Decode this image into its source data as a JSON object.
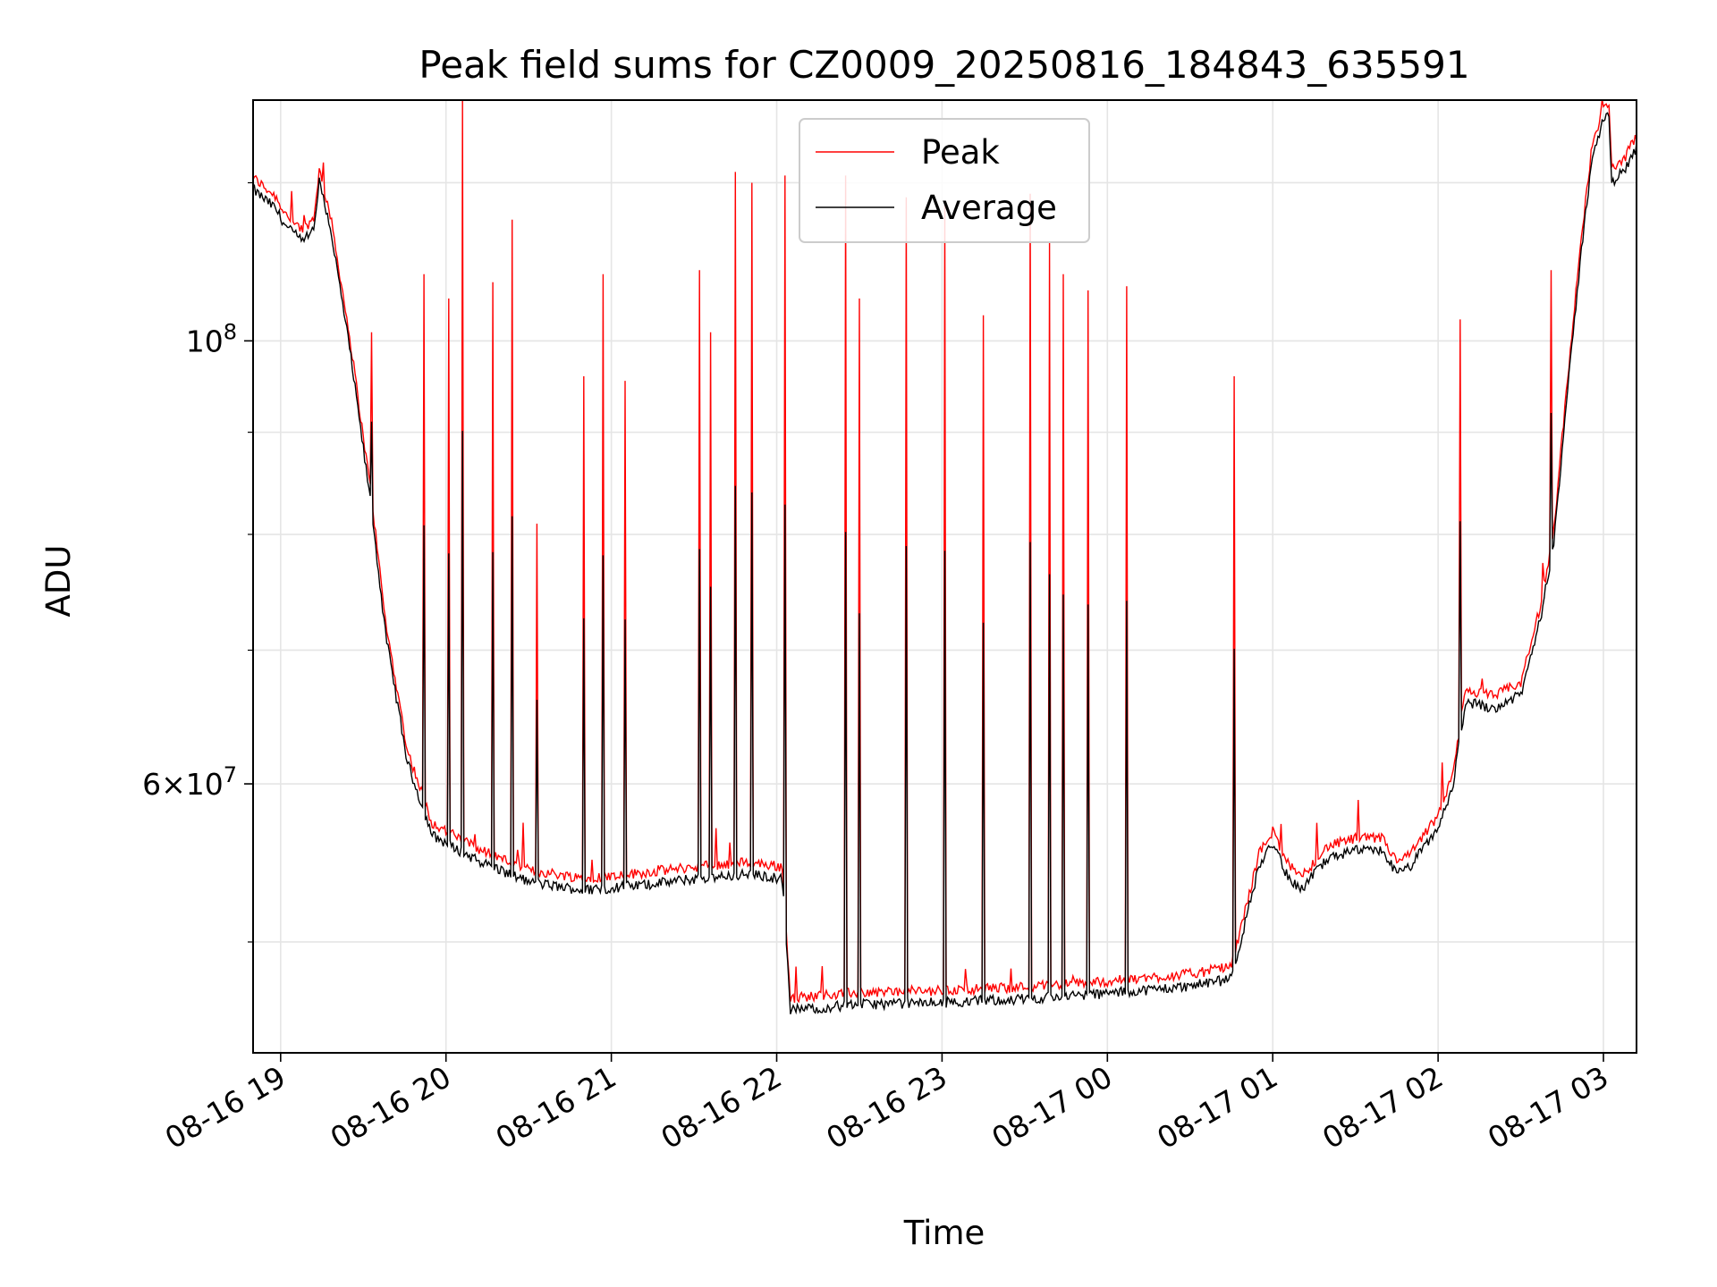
{
  "chart_data": {
    "type": "line",
    "title": "Peak field sums for CZ0009_20250816_184843_635591",
    "xlabel": "Time",
    "ylabel": "ADU",
    "y_scale": "log",
    "ylim": [
      44000000,
      132000000
    ],
    "xlim": [
      "2025-08-16 18:50",
      "2025-08-17 03:12"
    ],
    "x_ticks": [
      "08-16 19",
      "08-16 20",
      "08-16 21",
      "08-16 22",
      "08-16 23",
      "08-17 00",
      "08-17 01",
      "08-17 02",
      "08-17 03"
    ],
    "y_ticks": [
      "10^8",
      "6×10^7"
    ],
    "grid": true,
    "legend_position": "upper center",
    "series": [
      {
        "name": "Peak",
        "color": "#ff0000",
        "baseline": [
          [
            "2025-08-16 18:50",
            120000000
          ],
          [
            "2025-08-16 18:58",
            117500000
          ],
          [
            "2025-08-16 19:02",
            115000000
          ],
          [
            "2025-08-16 19:08",
            113000000
          ],
          [
            "2025-08-16 19:12",
            114500000
          ],
          [
            "2025-08-16 19:14",
            121000000
          ],
          [
            "2025-08-16 19:18",
            115000000
          ],
          [
            "2025-08-16 19:25",
            100000000
          ],
          [
            "2025-08-16 19:33",
            83000000
          ],
          [
            "2025-08-16 19:38",
            72000000
          ],
          [
            "2025-08-16 19:46",
            62000000
          ],
          [
            "2025-08-16 19:55",
            57000000
          ],
          [
            "2025-08-16 20:10",
            55500000
          ],
          [
            "2025-08-16 20:30",
            54000000
          ],
          [
            "2025-08-16 20:50",
            53500000
          ],
          [
            "2025-08-16 21:10",
            53800000
          ],
          [
            "2025-08-16 21:30",
            54200000
          ],
          [
            "2025-08-16 21:50",
            54500000
          ],
          [
            "2025-08-16 22:02",
            54200000
          ],
          [
            "2025-08-16 22:05",
            46600000
          ],
          [
            "2025-08-16 22:30",
            46900000
          ],
          [
            "2025-08-16 23:00",
            47000000
          ],
          [
            "2025-08-16 23:30",
            47200000
          ],
          [
            "2025-08-17 00:00",
            47500000
          ],
          [
            "2025-08-17 00:30",
            47900000
          ],
          [
            "2025-08-17 00:45",
            48300000
          ],
          [
            "2025-08-17 00:55",
            55000000
          ],
          [
            "2025-08-17 01:00",
            56500000
          ],
          [
            "2025-08-17 01:05",
            54500000
          ],
          [
            "2025-08-17 01:10",
            53500000
          ],
          [
            "2025-08-17 01:20",
            55500000
          ],
          [
            "2025-08-17 01:30",
            56000000
          ],
          [
            "2025-08-17 01:40",
            56000000
          ],
          [
            "2025-08-17 01:45",
            54500000
          ],
          [
            "2025-08-17 01:50",
            55000000
          ],
          [
            "2025-08-17 02:00",
            57500000
          ],
          [
            "2025-08-17 02:05",
            60000000
          ],
          [
            "2025-08-17 02:10",
            66500000
          ],
          [
            "2025-08-17 02:20",
            66000000
          ],
          [
            "2025-08-17 02:30",
            67000000
          ],
          [
            "2025-08-17 02:37",
            73000000
          ],
          [
            "2025-08-17 02:42",
            80000000
          ],
          [
            "2025-08-17 02:46",
            92000000
          ],
          [
            "2025-08-17 02:52",
            112000000
          ],
          [
            "2025-08-17 02:56",
            125000000
          ],
          [
            "2025-08-17 03:00",
            130000000
          ],
          [
            "2025-08-17 03:02",
            130500000
          ],
          [
            "2025-08-17 03:03",
            121000000
          ],
          [
            "2025-08-17 03:08",
            123000000
          ],
          [
            "2025-08-17 03:12",
            126000000
          ]
        ],
        "spikes": [
          [
            "2025-08-16 19:33",
            101000000
          ],
          [
            "2025-08-16 19:52",
            108000000
          ],
          [
            "2025-08-16 20:01",
            105000000
          ],
          [
            "2025-08-16 20:06",
            132000000
          ],
          [
            "2025-08-16 20:17",
            107000000
          ],
          [
            "2025-08-16 20:24",
            115000000
          ],
          [
            "2025-08-16 20:33",
            81000000
          ],
          [
            "2025-08-16 20:50",
            96000000
          ],
          [
            "2025-08-16 20:57",
            108000000
          ],
          [
            "2025-08-16 21:05",
            95500000
          ],
          [
            "2025-08-16 21:32",
            108500000
          ],
          [
            "2025-08-16 21:36",
            101000000
          ],
          [
            "2025-08-16 21:45",
            121500000
          ],
          [
            "2025-08-16 21:51",
            120000000
          ],
          [
            "2025-08-16 22:03",
            121000000
          ],
          [
            "2025-08-16 22:25",
            121000000
          ],
          [
            "2025-08-16 22:30",
            105000000
          ],
          [
            "2025-08-16 22:47",
            118000000
          ],
          [
            "2025-08-16 23:01",
            117000000
          ],
          [
            "2025-08-16 23:15",
            103000000
          ],
          [
            "2025-08-16 23:32",
            118500000
          ],
          [
            "2025-08-16 23:39",
            112000000
          ],
          [
            "2025-08-16 23:44",
            108000000
          ],
          [
            "2025-08-16 23:53",
            106000000
          ],
          [
            "2025-08-17 00:07",
            106500000
          ],
          [
            "2025-08-17 00:46",
            96000000
          ],
          [
            "2025-08-17 02:08",
            102500000
          ],
          [
            "2025-08-17 02:41",
            108500000
          ]
        ]
      },
      {
        "name": "Average",
        "color": "#000000"
      }
    ]
  }
}
